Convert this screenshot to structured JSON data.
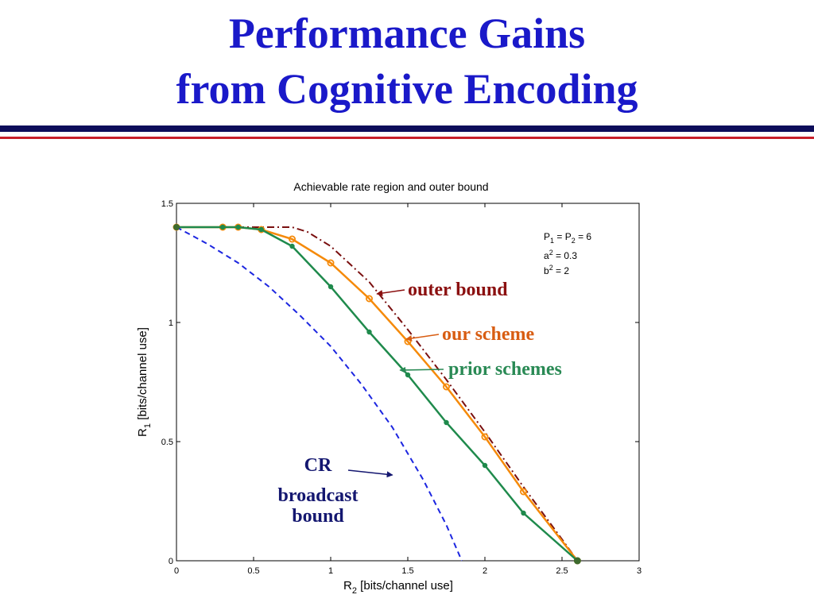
{
  "slide": {
    "title_line1": "Performance Gains",
    "title_line2": "from Cognitive Encoding",
    "colors": {
      "title": "#1a19c9",
      "rule_top": "#0d0d5a",
      "rule_bottom": "#c8202a"
    }
  },
  "chart_data": {
    "type": "line",
    "title": "Achievable rate region and outer bound",
    "xlabel_main": "R",
    "xlabel_sub": "2",
    "xlabel_rest": " [bits/channel use]",
    "ylabel_main": "R",
    "ylabel_sub": "1",
    "ylabel_rest": " [bits/channel use]",
    "xlim": [
      0,
      3
    ],
    "ylim": [
      0,
      1.5
    ],
    "xticks": [
      0,
      0.5,
      1,
      1.5,
      2,
      2.5,
      3
    ],
    "xtick_labels": [
      "0",
      "0.5",
      "1",
      "1.5",
      "2",
      "2.5",
      "3"
    ],
    "yticks": [
      0,
      0.5,
      1,
      1.5
    ],
    "ytick_labels": [
      "0",
      "0.5",
      "1",
      "1.5"
    ],
    "params": [
      {
        "main": "P",
        "sub1": "1",
        "mid": " = P",
        "sub2": "2",
        "rest": " = 6"
      },
      {
        "main": "a",
        "sup": "2",
        "rest": " = 0.3"
      },
      {
        "main": "b",
        "sup": "2",
        "rest": " = 2"
      }
    ],
    "series": [
      {
        "key": "outer",
        "style": "dashdot",
        "color": "#7a0f0f",
        "markers": false,
        "x": [
          0,
          0.5,
          0.75,
          0.85,
          1.0,
          1.25,
          1.5,
          1.75,
          2.0,
          2.25,
          2.5,
          2.6
        ],
        "y": [
          1.4,
          1.4,
          1.4,
          1.38,
          1.32,
          1.17,
          0.97,
          0.76,
          0.54,
          0.31,
          0.09,
          0
        ]
      },
      {
        "key": "ours",
        "style": "solid",
        "color": "#f58a0a",
        "markers": "circle",
        "x": [
          0,
          0.3,
          0.4,
          0.55,
          0.75,
          1.0,
          1.25,
          1.5,
          1.75,
          2.0,
          2.25,
          2.6
        ],
        "y": [
          1.4,
          1.4,
          1.4,
          1.39,
          1.35,
          1.25,
          1.1,
          0.92,
          0.73,
          0.52,
          0.29,
          0
        ]
      },
      {
        "key": "prior",
        "style": "solid",
        "color": "#1f8a4c",
        "markers": "dot",
        "x": [
          0,
          0.3,
          0.4,
          0.55,
          0.75,
          1.0,
          1.25,
          1.5,
          1.75,
          2.0,
          2.25,
          2.6
        ],
        "y": [
          1.4,
          1.4,
          1.4,
          1.39,
          1.32,
          1.15,
          0.96,
          0.78,
          0.58,
          0.4,
          0.2,
          0
        ]
      },
      {
        "key": "cr",
        "style": "dashed",
        "color": "#1c26e0",
        "markers": false,
        "x": [
          0,
          0.2,
          0.4,
          0.6,
          0.8,
          1.0,
          1.2,
          1.4,
          1.6,
          1.75,
          1.85
        ],
        "y": [
          1.4,
          1.33,
          1.25,
          1.15,
          1.03,
          0.9,
          0.74,
          0.56,
          0.34,
          0.15,
          0
        ]
      }
    ],
    "annotations": [
      {
        "key": "outer",
        "text": "outer bound",
        "color": "#8b1010",
        "arrow_to": [
          1.3,
          1.12
        ]
      },
      {
        "key": "ours",
        "text": "our scheme",
        "color": "#d85d12",
        "arrow_to": [
          1.49,
          0.93
        ]
      },
      {
        "key": "prior",
        "text": "prior schemes",
        "color": "#2a8a55",
        "arrow_to": [
          1.45,
          0.8
        ]
      },
      {
        "key": "cr",
        "lines": [
          "CR",
          "broadcast",
          "bound"
        ],
        "color": "#141770",
        "arrow_to": [
          1.4,
          0.36
        ]
      }
    ]
  }
}
